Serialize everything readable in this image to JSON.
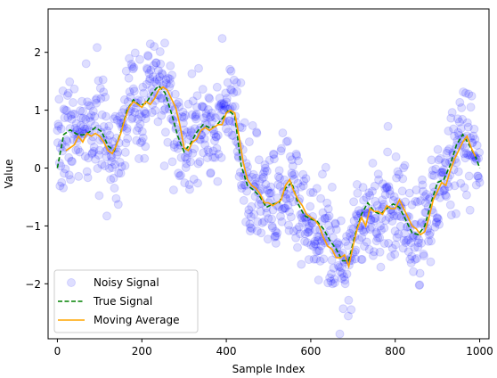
{
  "chart_data": {
    "type": "line",
    "xlabel": "Sample Index",
    "ylabel": "Value",
    "xlim": [
      -22,
      1022
    ],
    "ylim": [
      -2.95,
      2.75
    ],
    "x_ticks": [
      0,
      200,
      400,
      600,
      800,
      1000
    ],
    "y_ticks": [
      -2,
      -1,
      0,
      1,
      2
    ],
    "grid": false,
    "legend_position": "lower-left",
    "colors": {
      "noisy": "#0000ff",
      "true": "#008000",
      "moving": "#ffa500"
    },
    "series": [
      {
        "name": "Noisy Signal",
        "style": "scatter",
        "alpha": 0.13,
        "x_start": 0,
        "x_end": 1000,
        "count": 1000,
        "noise_std": 0.45,
        "seed": 7
      },
      {
        "name": "True Signal",
        "style": "dashed-line",
        "x": [
          0,
          15,
          30,
          45,
          60,
          75,
          90,
          105,
          120,
          135,
          150,
          165,
          180,
          195,
          210,
          225,
          240,
          255,
          270,
          285,
          300,
          315,
          330,
          345,
          360,
          375,
          390,
          405,
          420,
          435,
          450,
          465,
          480,
          495,
          510,
          525,
          540,
          555,
          570,
          585,
          600,
          615,
          630,
          645,
          660,
          675,
          690,
          705,
          720,
          735,
          750,
          765,
          780,
          795,
          810,
          825,
          840,
          855,
          870,
          885,
          900,
          915,
          930,
          945,
          960,
          975,
          990,
          1000
        ],
        "y": [
          0.0,
          0.58,
          0.66,
          0.59,
          0.57,
          0.62,
          0.7,
          0.63,
          0.38,
          0.3,
          0.62,
          1.0,
          1.18,
          1.08,
          1.12,
          1.3,
          1.42,
          1.3,
          0.95,
          0.55,
          0.28,
          0.42,
          0.62,
          0.75,
          0.7,
          0.72,
          0.85,
          1.0,
          0.9,
          0.05,
          -0.3,
          -0.38,
          -0.5,
          -0.68,
          -0.62,
          -0.6,
          -0.35,
          -0.25,
          -0.62,
          -0.82,
          -0.88,
          -0.92,
          -1.05,
          -1.25,
          -1.4,
          -1.6,
          -1.6,
          -1.15,
          -0.8,
          -0.6,
          -0.75,
          -0.8,
          -0.7,
          -0.62,
          -0.68,
          -0.9,
          -1.12,
          -1.15,
          -1.0,
          -0.6,
          -0.25,
          -0.2,
          0.05,
          0.4,
          0.58,
          0.4,
          0.2,
          0.0
        ]
      },
      {
        "name": "Moving Average",
        "style": "line",
        "x": [
          20,
          30,
          40,
          50,
          60,
          70,
          80,
          90,
          100,
          110,
          120,
          130,
          140,
          150,
          160,
          170,
          180,
          190,
          200,
          210,
          220,
          230,
          240,
          250,
          260,
          270,
          280,
          290,
          300,
          310,
          320,
          330,
          340,
          350,
          360,
          370,
          380,
          390,
          400,
          410,
          420,
          430,
          440,
          450,
          460,
          470,
          480,
          490,
          500,
          510,
          520,
          530,
          540,
          550,
          560,
          570,
          580,
          590,
          600,
          610,
          620,
          630,
          640,
          650,
          660,
          670,
          680,
          690,
          700,
          710,
          720,
          730,
          740,
          750,
          760,
          770,
          780,
          790,
          800,
          810,
          820,
          830,
          840,
          850,
          860,
          870,
          880,
          890,
          900,
          910,
          920,
          930,
          940,
          950,
          960,
          970,
          980,
          990
        ],
        "y": [
          0.3,
          0.35,
          0.4,
          0.55,
          0.45,
          0.6,
          0.55,
          0.6,
          0.55,
          0.45,
          0.3,
          0.25,
          0.4,
          0.6,
          0.85,
          1.05,
          1.15,
          1.1,
          1.05,
          1.15,
          1.1,
          1.2,
          1.35,
          1.4,
          1.35,
          1.2,
          1.05,
          0.75,
          0.35,
          0.3,
          0.45,
          0.5,
          0.65,
          0.7,
          0.65,
          0.7,
          0.75,
          0.75,
          0.95,
          1.0,
          0.95,
          0.55,
          0.1,
          -0.2,
          -0.3,
          -0.35,
          -0.45,
          -0.6,
          -0.6,
          -0.65,
          -0.6,
          -0.55,
          -0.3,
          -0.2,
          -0.4,
          -0.55,
          -0.65,
          -0.8,
          -0.85,
          -0.9,
          -1.0,
          -1.2,
          -1.35,
          -1.4,
          -1.55,
          -1.55,
          -1.5,
          -1.7,
          -1.35,
          -1.05,
          -0.85,
          -1.0,
          -0.7,
          -0.75,
          -0.75,
          -0.8,
          -0.65,
          -0.7,
          -0.7,
          -0.55,
          -0.7,
          -0.85,
          -1.0,
          -1.05,
          -1.15,
          -1.1,
          -0.85,
          -0.55,
          -0.4,
          -0.25,
          -0.3,
          -0.05,
          0.15,
          0.3,
          0.45,
          0.55,
          0.35,
          0.2
        ]
      }
    ]
  }
}
